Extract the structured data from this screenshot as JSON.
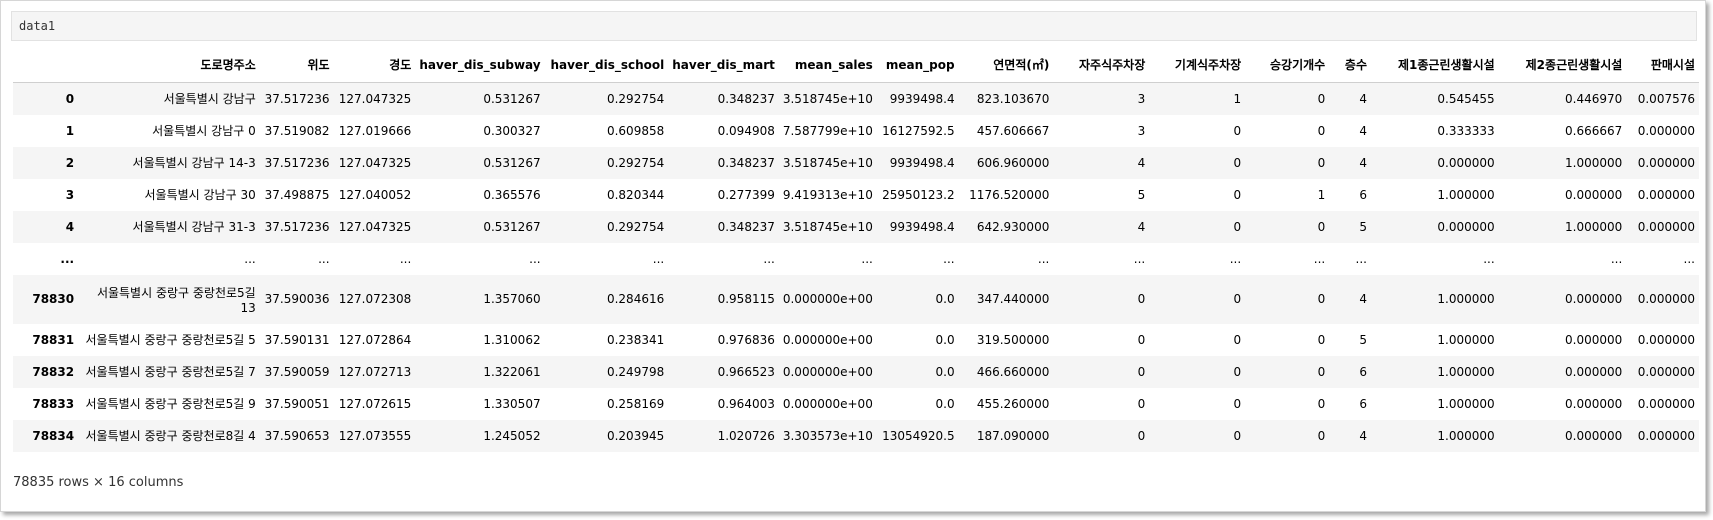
{
  "cell": {
    "code": "data1"
  },
  "table": {
    "columns": [
      "",
      "도로명주소",
      "위도",
      "경도",
      "haver_dis_subway",
      "haver_dis_school",
      "haver_dis_mart",
      "mean_sales",
      "mean_pop",
      "연면적(㎡)",
      "자주식주차장",
      "기계식주차장",
      "승강기개수",
      "층수",
      "제1종근린생활시설",
      "제2종근린생활시설",
      "판매시설"
    ],
    "rows": [
      [
        "0",
        "서울특별시 강남구",
        "37.517236",
        "127.047325",
        "0.531267",
        "0.292754",
        "0.348237",
        "3.518745e+10",
        "9939498.4",
        "823.103670",
        "3",
        "1",
        "0",
        "4",
        "0.545455",
        "0.446970",
        "0.007576"
      ],
      [
        "1",
        "서울특별시 강남구 0",
        "37.519082",
        "127.019666",
        "0.300327",
        "0.609858",
        "0.094908",
        "7.587799e+10",
        "16127592.5",
        "457.606667",
        "3",
        "0",
        "0",
        "4",
        "0.333333",
        "0.666667",
        "0.000000"
      ],
      [
        "2",
        "서울특별시 강남구 14-3",
        "37.517236",
        "127.047325",
        "0.531267",
        "0.292754",
        "0.348237",
        "3.518745e+10",
        "9939498.4",
        "606.960000",
        "4",
        "0",
        "0",
        "4",
        "0.000000",
        "1.000000",
        "0.000000"
      ],
      [
        "3",
        "서울특별시 강남구 30",
        "37.498875",
        "127.040052",
        "0.365576",
        "0.820344",
        "0.277399",
        "9.419313e+10",
        "25950123.2",
        "1176.520000",
        "5",
        "0",
        "1",
        "6",
        "1.000000",
        "0.000000",
        "0.000000"
      ],
      [
        "4",
        "서울특별시 강남구 31-3",
        "37.517236",
        "127.047325",
        "0.531267",
        "0.292754",
        "0.348237",
        "3.518745e+10",
        "9939498.4",
        "642.930000",
        "4",
        "0",
        "0",
        "5",
        "0.000000",
        "1.000000",
        "0.000000"
      ],
      [
        "...",
        "...",
        "...",
        "...",
        "...",
        "...",
        "...",
        "...",
        "...",
        "...",
        "...",
        "...",
        "...",
        "...",
        "...",
        "...",
        "..."
      ],
      [
        "78830",
        "서울특별시 중랑구 중랑천로5길 13",
        "37.590036",
        "127.072308",
        "1.357060",
        "0.284616",
        "0.958115",
        "0.000000e+00",
        "0.0",
        "347.440000",
        "0",
        "0",
        "0",
        "4",
        "1.000000",
        "0.000000",
        "0.000000"
      ],
      [
        "78831",
        "서울특별시 중랑구 중랑천로5길 5",
        "37.590131",
        "127.072864",
        "1.310062",
        "0.238341",
        "0.976836",
        "0.000000e+00",
        "0.0",
        "319.500000",
        "0",
        "0",
        "0",
        "5",
        "1.000000",
        "0.000000",
        "0.000000"
      ],
      [
        "78832",
        "서울특별시 중랑구 중랑천로5길 7",
        "37.590059",
        "127.072713",
        "1.322061",
        "0.249798",
        "0.966523",
        "0.000000e+00",
        "0.0",
        "466.660000",
        "0",
        "0",
        "0",
        "6",
        "1.000000",
        "0.000000",
        "0.000000"
      ],
      [
        "78833",
        "서울특별시 중랑구 중랑천로5길 9",
        "37.590051",
        "127.072615",
        "1.330507",
        "0.258169",
        "0.964003",
        "0.000000e+00",
        "0.0",
        "455.260000",
        "0",
        "0",
        "0",
        "6",
        "1.000000",
        "0.000000",
        "0.000000"
      ],
      [
        "78834",
        "서울특별시 중랑구 중랑천로8길 4",
        "37.590653",
        "127.073555",
        "1.245052",
        "0.203945",
        "1.020726",
        "3.303573e+10",
        "13054920.5",
        "187.090000",
        "0",
        "0",
        "0",
        "4",
        "1.000000",
        "0.000000",
        "0.000000"
      ]
    ]
  },
  "footer": "78835 rows × 16 columns"
}
